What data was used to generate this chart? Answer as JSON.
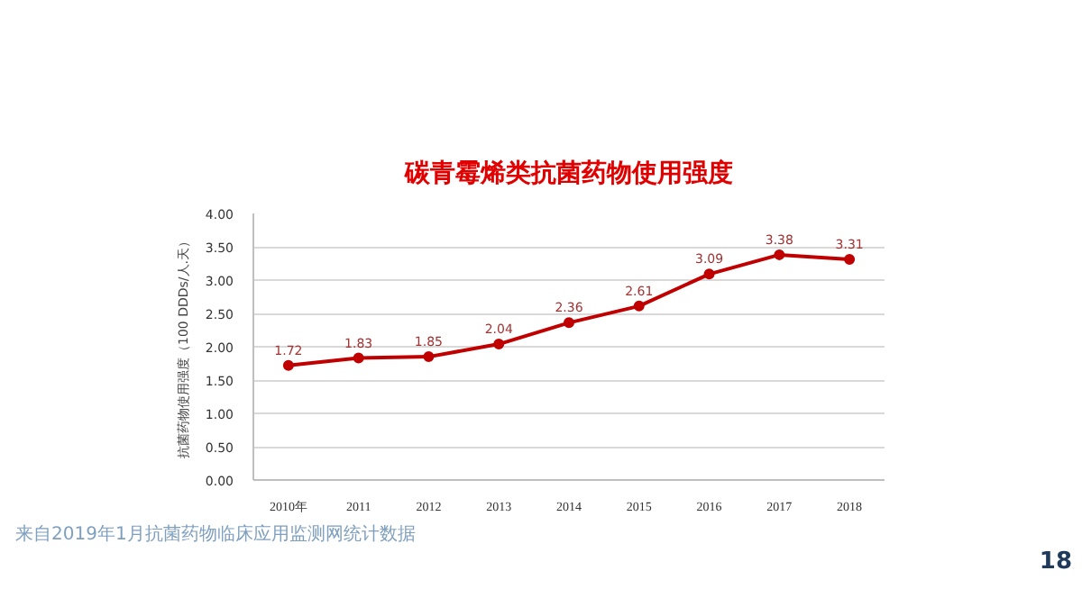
{
  "chart_data": {
    "type": "line",
    "title": "碳青霉烯类抗菌药物使用强度",
    "ylabel": "抗菌药物使用强度（100 DDDs/人.天）",
    "categories": [
      "2010年",
      "2011",
      "2012",
      "2013",
      "2014",
      "2015",
      "2016",
      "2017",
      "2018"
    ],
    "series": [
      {
        "color": "#c00000",
        "values": [
          1.72,
          1.83,
          1.85,
          2.04,
          2.36,
          2.61,
          3.09,
          3.38,
          3.31
        ]
      }
    ],
    "ylim": [
      0,
      4
    ],
    "yticks": [
      {
        "value": 0,
        "label": "0.00"
      },
      {
        "value": 0.5,
        "label": "0.50"
      },
      {
        "value": 1,
        "label": "1.00"
      },
      {
        "value": 1.5,
        "label": "1.50"
      },
      {
        "value": 2,
        "label": "2.00"
      },
      {
        "value": 2.5,
        "label": "2.50"
      },
      {
        "value": 3,
        "label": "3.00"
      },
      {
        "value": 3.5,
        "label": "3.50"
      },
      {
        "value": 4,
        "label": "4.00"
      }
    ],
    "grid": "y",
    "marker": "circle",
    "line_style": "solid",
    "data_labels": true,
    "annotations": [
      "来自2019年1月抗菌药物临床应用监测网统计数据",
      "18"
    ]
  }
}
